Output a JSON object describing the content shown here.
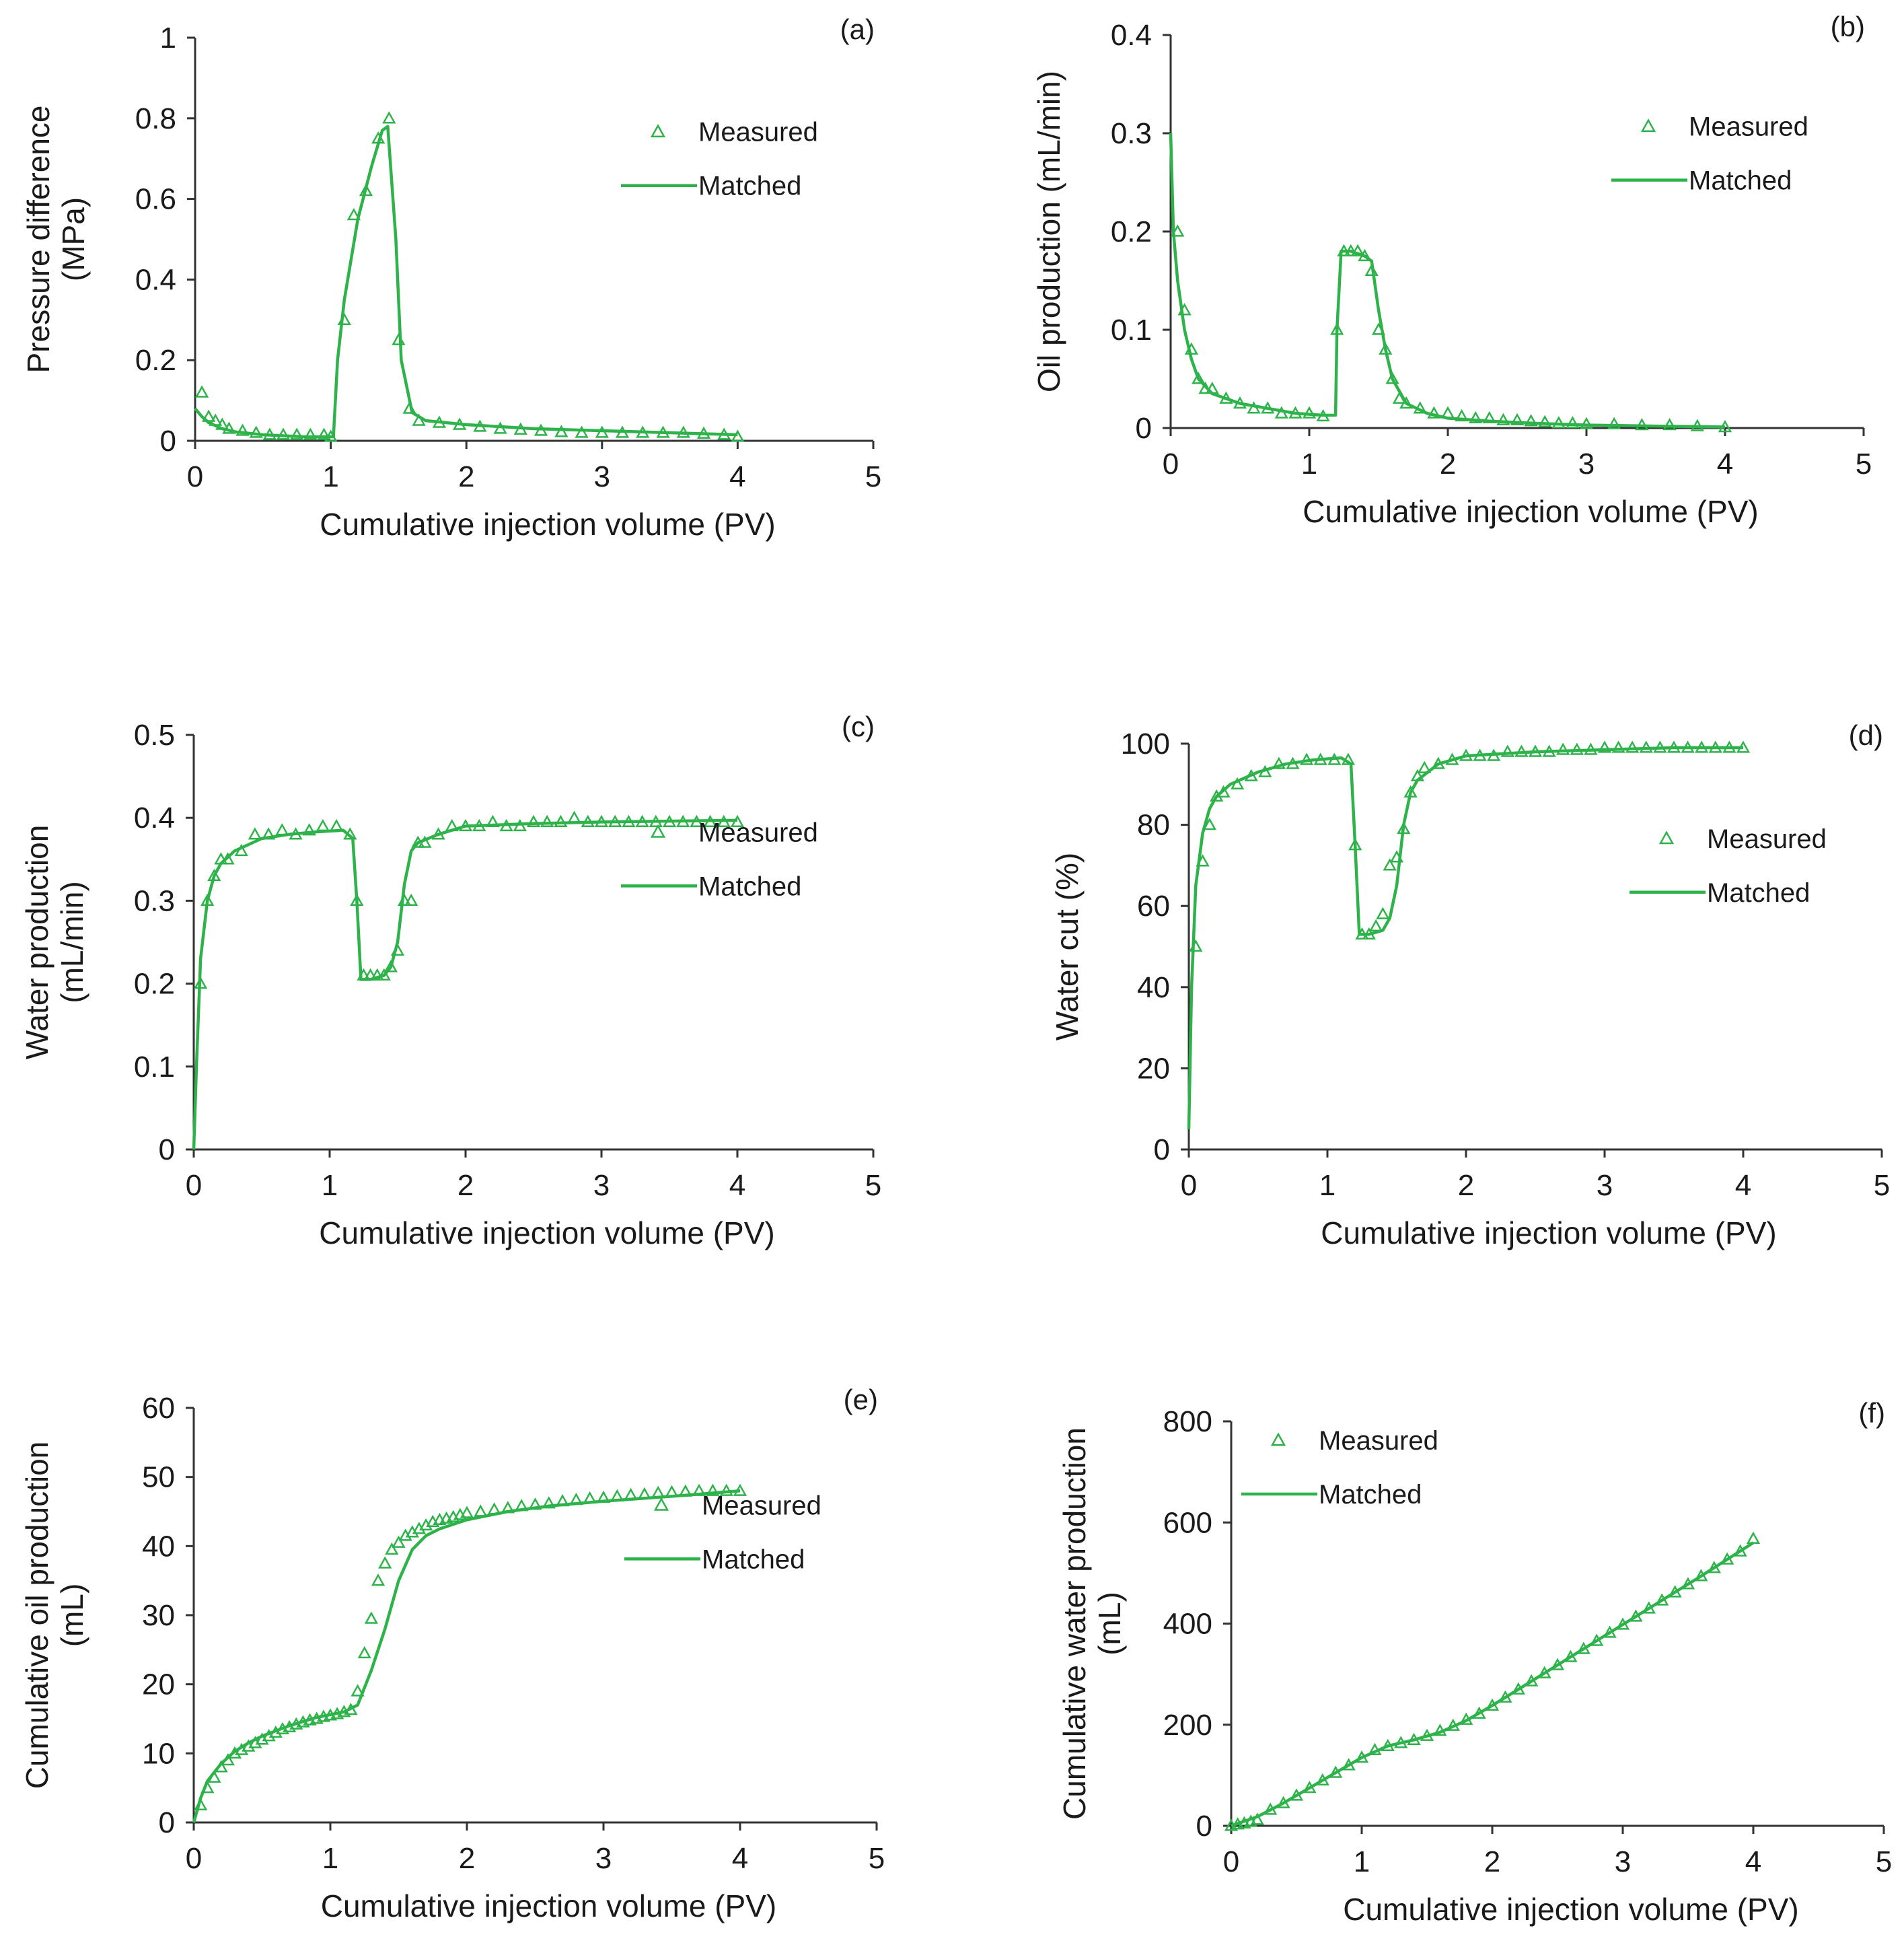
{
  "figure": {
    "series_color": "#2db34a",
    "axis_color": "#333333"
  },
  "chart_data": [
    {
      "id": "a",
      "type": "line",
      "panel_label": "(a)",
      "xlabel": "Cumulative injection volume (PV)",
      "ylabel_lines": [
        "Pressure difference",
        "(MPa)"
      ],
      "xlim": [
        0,
        5
      ],
      "ylim": [
        0,
        1
      ],
      "xticks": [
        0,
        1,
        2,
        3,
        4,
        5
      ],
      "yticks": [
        0,
        0.2,
        0.4,
        0.6,
        0.8,
        1
      ],
      "ytick_labels": [
        "0",
        "0.2",
        "0.4",
        "0.6",
        "0.8",
        "1"
      ],
      "legend": {
        "measured": "Measured",
        "matched": "Matched",
        "position": "right-middle"
      },
      "matched": {
        "x": [
          0,
          0.05,
          0.1,
          0.2,
          0.3,
          0.5,
          0.8,
          1.0,
          1.02,
          1.05,
          1.1,
          1.2,
          1.3,
          1.38,
          1.42,
          1.48,
          1.52,
          1.6,
          1.7,
          2.0,
          2.5,
          3.0,
          3.5,
          4.0
        ],
        "y": [
          0.08,
          0.06,
          0.045,
          0.03,
          0.022,
          0.015,
          0.01,
          0.01,
          0.01,
          0.2,
          0.35,
          0.55,
          0.68,
          0.77,
          0.78,
          0.5,
          0.2,
          0.07,
          0.05,
          0.04,
          0.03,
          0.025,
          0.02,
          0.015
        ]
      },
      "measured": {
        "x": [
          0.05,
          0.1,
          0.15,
          0.2,
          0.25,
          0.35,
          0.45,
          0.55,
          0.65,
          0.75,
          0.85,
          0.95,
          1.0,
          1.1,
          1.17,
          1.26,
          1.35,
          1.43,
          1.5,
          1.58,
          1.65,
          1.8,
          1.95,
          2.1,
          2.25,
          2.4,
          2.55,
          2.7,
          2.85,
          3.0,
          3.15,
          3.3,
          3.45,
          3.6,
          3.75,
          3.9,
          4.0
        ],
        "y": [
          0.12,
          0.06,
          0.05,
          0.04,
          0.03,
          0.025,
          0.02,
          0.015,
          0.015,
          0.015,
          0.015,
          0.015,
          0.01,
          0.3,
          0.56,
          0.62,
          0.75,
          0.8,
          0.25,
          0.08,
          0.05,
          0.045,
          0.04,
          0.035,
          0.03,
          0.028,
          0.025,
          0.022,
          0.02,
          0.02,
          0.02,
          0.02,
          0.02,
          0.02,
          0.018,
          0.015,
          0.01
        ]
      }
    },
    {
      "id": "b",
      "type": "line",
      "panel_label": "(b)",
      "xlabel": "Cumulative injection volume (PV)",
      "ylabel_lines": [
        "Oil production  (mL/min)"
      ],
      "xlim": [
        0,
        5
      ],
      "ylim": [
        0,
        0.4
      ],
      "xticks": [
        0,
        1,
        2,
        3,
        4,
        5
      ],
      "yticks": [
        0,
        0.1,
        0.2,
        0.3,
        0.4
      ],
      "ytick_labels": [
        "0",
        "0.1",
        "0.2",
        "0.3",
        "0.4"
      ],
      "legend": {
        "measured": "Measured",
        "matched": "Matched",
        "position": "right-middle"
      },
      "matched": {
        "x": [
          0,
          0.02,
          0.05,
          0.1,
          0.15,
          0.2,
          0.3,
          0.5,
          0.7,
          0.9,
          1.1,
          1.19,
          1.2,
          1.23,
          1.3,
          1.4,
          1.45,
          1.5,
          1.55,
          1.6,
          1.7,
          1.85,
          2.0,
          2.3,
          2.6,
          3.0,
          3.5,
          4.0
        ],
        "y": [
          0.3,
          0.2,
          0.15,
          0.1,
          0.07,
          0.05,
          0.035,
          0.025,
          0.02,
          0.015,
          0.013,
          0.013,
          0.1,
          0.18,
          0.18,
          0.175,
          0.17,
          0.12,
          0.08,
          0.05,
          0.025,
          0.015,
          0.01,
          0.007,
          0.005,
          0.003,
          0.002,
          0.001
        ]
      },
      "measured": {
        "x": [
          0.05,
          0.1,
          0.15,
          0.2,
          0.25,
          0.3,
          0.4,
          0.5,
          0.6,
          0.7,
          0.8,
          0.9,
          1.0,
          1.1,
          1.2,
          1.25,
          1.3,
          1.35,
          1.4,
          1.45,
          1.5,
          1.55,
          1.6,
          1.65,
          1.7,
          1.8,
          1.9,
          2.0,
          2.1,
          2.2,
          2.3,
          2.4,
          2.5,
          2.6,
          2.7,
          2.8,
          2.9,
          3.0,
          3.2,
          3.4,
          3.6,
          3.8,
          4.0
        ],
        "y": [
          0.2,
          0.12,
          0.08,
          0.05,
          0.04,
          0.04,
          0.03,
          0.025,
          0.02,
          0.02,
          0.015,
          0.015,
          0.015,
          0.012,
          0.1,
          0.18,
          0.18,
          0.18,
          0.175,
          0.16,
          0.1,
          0.08,
          0.05,
          0.03,
          0.025,
          0.02,
          0.015,
          0.015,
          0.012,
          0.01,
          0.01,
          0.008,
          0.008,
          0.007,
          0.006,
          0.005,
          0.005,
          0.004,
          0.004,
          0.003,
          0.003,
          0.002,
          0.001
        ]
      }
    },
    {
      "id": "c",
      "type": "line",
      "panel_label": "(c)",
      "xlabel": "Cumulative injection volume (PV)",
      "ylabel_lines": [
        "Water production",
        "(mL/min)"
      ],
      "xlim": [
        0,
        5
      ],
      "ylim": [
        0,
        0.5
      ],
      "xticks": [
        0,
        1,
        2,
        3,
        4,
        5
      ],
      "yticks": [
        0,
        0.1,
        0.2,
        0.3,
        0.4,
        0.5
      ],
      "ytick_labels": [
        "0",
        "0.1",
        "0.2",
        "0.3",
        "0.4",
        "0.5"
      ],
      "legend": {
        "measured": "Measured",
        "matched": "Matched",
        "position": "right-middle"
      },
      "matched": {
        "x": [
          0,
          0.02,
          0.05,
          0.1,
          0.15,
          0.2,
          0.3,
          0.5,
          0.7,
          0.9,
          1.1,
          1.17,
          1.2,
          1.23,
          1.3,
          1.4,
          1.45,
          1.5,
          1.55,
          1.6,
          1.65,
          1.8,
          2.0,
          2.5,
          3.0,
          3.5,
          4.0
        ],
        "y": [
          0,
          0.1,
          0.23,
          0.3,
          0.33,
          0.345,
          0.36,
          0.375,
          0.38,
          0.383,
          0.385,
          0.375,
          0.3,
          0.205,
          0.205,
          0.21,
          0.22,
          0.25,
          0.32,
          0.36,
          0.37,
          0.38,
          0.39,
          0.393,
          0.395,
          0.396,
          0.397
        ]
      },
      "measured": {
        "x": [
          0.05,
          0.1,
          0.15,
          0.2,
          0.25,
          0.35,
          0.45,
          0.55,
          0.65,
          0.75,
          0.85,
          0.95,
          1.05,
          1.15,
          1.2,
          1.25,
          1.3,
          1.35,
          1.4,
          1.45,
          1.5,
          1.55,
          1.6,
          1.65,
          1.7,
          1.8,
          1.9,
          2.0,
          2.1,
          2.2,
          2.3,
          2.4,
          2.5,
          2.6,
          2.7,
          2.8,
          2.9,
          3.0,
          3.1,
          3.2,
          3.3,
          3.4,
          3.5,
          3.6,
          3.7,
          3.8,
          3.9,
          4.0
        ],
        "y": [
          0.2,
          0.3,
          0.33,
          0.35,
          0.35,
          0.36,
          0.38,
          0.38,
          0.385,
          0.38,
          0.385,
          0.39,
          0.39,
          0.38,
          0.3,
          0.21,
          0.21,
          0.21,
          0.21,
          0.22,
          0.24,
          0.3,
          0.3,
          0.37,
          0.37,
          0.38,
          0.39,
          0.39,
          0.39,
          0.395,
          0.39,
          0.39,
          0.395,
          0.395,
          0.395,
          0.4,
          0.395,
          0.395,
          0.395,
          0.395,
          0.395,
          0.395,
          0.395,
          0.395,
          0.395,
          0.395,
          0.395,
          0.395
        ]
      }
    },
    {
      "id": "d",
      "type": "line",
      "panel_label": "(d)",
      "xlabel": "Cumulative injection volume (PV)",
      "ylabel_lines": [
        "Water cut  (%)"
      ],
      "xlim": [
        0,
        5
      ],
      "ylim": [
        0,
        100
      ],
      "xticks": [
        0,
        1,
        2,
        3,
        4,
        5
      ],
      "yticks": [
        0,
        20,
        40,
        60,
        80,
        100
      ],
      "ytick_labels": [
        "0",
        "20",
        "40",
        "60",
        "80",
        "100"
      ],
      "legend": {
        "measured": "Measured",
        "matched": "Matched",
        "position": "right-middle"
      },
      "matched": {
        "x": [
          0,
          0.02,
          0.05,
          0.1,
          0.15,
          0.2,
          0.3,
          0.5,
          0.7,
          0.9,
          1.1,
          1.17,
          1.2,
          1.23,
          1.3,
          1.4,
          1.45,
          1.5,
          1.55,
          1.6,
          1.65,
          1.8,
          2.0,
          2.5,
          3.0,
          3.5,
          4.0
        ],
        "y": [
          5,
          40,
          65,
          78,
          84,
          87,
          90,
          93,
          95,
          96,
          96.5,
          95,
          75,
          53,
          53,
          54,
          57,
          65,
          80,
          88,
          91,
          95,
          97,
          98,
          98.5,
          99,
          99
        ]
      },
      "measured": {
        "x": [
          0.05,
          0.1,
          0.15,
          0.2,
          0.25,
          0.35,
          0.45,
          0.55,
          0.65,
          0.75,
          0.85,
          0.95,
          1.05,
          1.15,
          1.2,
          1.25,
          1.3,
          1.35,
          1.4,
          1.45,
          1.5,
          1.55,
          1.6,
          1.65,
          1.7,
          1.8,
          1.9,
          2.0,
          2.1,
          2.2,
          2.3,
          2.4,
          2.5,
          2.6,
          2.7,
          2.8,
          2.9,
          3.0,
          3.1,
          3.2,
          3.3,
          3.4,
          3.5,
          3.6,
          3.7,
          3.8,
          3.9,
          4.0
        ],
        "y": [
          50,
          71,
          80,
          87,
          88,
          90,
          92,
          93,
          95,
          95,
          96,
          96,
          96,
          96,
          75,
          53,
          53,
          55,
          58,
          70,
          72,
          79,
          88,
          92,
          94,
          95,
          96,
          97,
          97,
          97,
          98,
          98,
          98,
          98,
          98.5,
          98.5,
          98.5,
          99,
          99,
          99,
          99,
          99,
          99,
          99,
          99,
          99,
          99,
          99
        ]
      }
    },
    {
      "id": "e",
      "type": "line",
      "panel_label": "(e)",
      "xlabel": "Cumulative injection volume (PV)",
      "ylabel_lines": [
        "Cumulative oil production",
        "(mL)"
      ],
      "xlim": [
        0,
        5
      ],
      "ylim": [
        0,
        60
      ],
      "xticks": [
        0,
        1,
        2,
        3,
        4,
        5
      ],
      "yticks": [
        0,
        10,
        20,
        30,
        40,
        50,
        60
      ],
      "ytick_labels": [
        "0",
        "10",
        "20",
        "30",
        "40",
        "50",
        "60"
      ],
      "legend": {
        "measured": "Measured",
        "matched": "Matched",
        "position": "right-middle"
      },
      "matched": {
        "x": [
          0,
          0.05,
          0.1,
          0.2,
          0.3,
          0.4,
          0.5,
          0.7,
          0.9,
          1.1,
          1.2,
          1.3,
          1.4,
          1.5,
          1.6,
          1.7,
          1.8,
          2.0,
          2.3,
          2.6,
          3.0,
          3.5,
          4.0
        ],
        "y": [
          0,
          3.5,
          6,
          8.5,
          10.3,
          11.5,
          12.5,
          14,
          15.2,
          16,
          17,
          22,
          28,
          35,
          39.5,
          41.5,
          42.5,
          43.8,
          45,
          45.8,
          46.5,
          47.2,
          48
        ]
      },
      "measured": {
        "x": [
          0.05,
          0.1,
          0.15,
          0.2,
          0.25,
          0.3,
          0.35,
          0.4,
          0.45,
          0.5,
          0.55,
          0.6,
          0.65,
          0.7,
          0.75,
          0.8,
          0.85,
          0.9,
          0.95,
          1.0,
          1.05,
          1.1,
          1.15,
          1.2,
          1.25,
          1.3,
          1.35,
          1.4,
          1.45,
          1.5,
          1.55,
          1.6,
          1.65,
          1.7,
          1.75,
          1.8,
          1.85,
          1.9,
          1.95,
          2.0,
          2.1,
          2.2,
          2.3,
          2.4,
          2.5,
          2.6,
          2.7,
          2.8,
          2.9,
          3.0,
          3.1,
          3.2,
          3.3,
          3.4,
          3.5,
          3.6,
          3.7,
          3.8,
          3.9,
          4.0
        ],
        "y": [
          2.5,
          5,
          6.5,
          8,
          9,
          10,
          10.5,
          11,
          11.5,
          12,
          12.5,
          13,
          13.5,
          13.8,
          14.2,
          14.5,
          14.8,
          15,
          15.3,
          15.5,
          15.7,
          16,
          16.3,
          19,
          24.5,
          29.5,
          35,
          37.5,
          39.5,
          40.5,
          41.5,
          42,
          42.5,
          43,
          43.5,
          43.8,
          44,
          44.2,
          44.5,
          44.8,
          45,
          45.3,
          45.5,
          45.8,
          46,
          46.2,
          46.5,
          46.7,
          46.9,
          47,
          47.2,
          47.4,
          47.5,
          47.7,
          47.8,
          47.9,
          48,
          48,
          48,
          48
        ]
      }
    },
    {
      "id": "f",
      "type": "line",
      "panel_label": "(f)",
      "xlabel": "Cumulative injection volume (PV)",
      "ylabel_lines": [
        "Cumulative water production",
        "(mL)"
      ],
      "xlim": [
        0,
        5
      ],
      "ylim": [
        0,
        800
      ],
      "xticks": [
        0,
        1,
        2,
        3,
        4,
        5
      ],
      "yticks": [
        0,
        200,
        400,
        600,
        800
      ],
      "ytick_labels": [
        "0",
        "200",
        "400",
        "600",
        "800"
      ],
      "legend": {
        "measured": "Measured",
        "matched": "Matched",
        "position": "top-left"
      },
      "matched": {
        "x": [
          0,
          0.2,
          0.4,
          0.6,
          0.8,
          1.0,
          1.2,
          1.4,
          1.6,
          1.8,
          2.0,
          2.2,
          2.4,
          2.6,
          2.8,
          3.0,
          3.2,
          3.4,
          3.6,
          3.8,
          4.0
        ],
        "y": [
          0,
          18,
          45,
          75,
          105,
          135,
          158,
          170,
          185,
          208,
          238,
          270,
          302,
          334,
          366,
          398,
          430,
          462,
          494,
          527,
          560
        ]
      },
      "measured": {
        "x": [
          0,
          0.05,
          0.1,
          0.15,
          0.2,
          0.3,
          0.4,
          0.5,
          0.6,
          0.7,
          0.8,
          0.9,
          1.0,
          1.1,
          1.2,
          1.3,
          1.4,
          1.5,
          1.6,
          1.7,
          1.8,
          1.9,
          2.0,
          2.1,
          2.2,
          2.3,
          2.4,
          2.5,
          2.6,
          2.7,
          2.8,
          2.9,
          3.0,
          3.1,
          3.2,
          3.3,
          3.4,
          3.5,
          3.6,
          3.7,
          3.8,
          3.9,
          4.0
        ],
        "y": [
          0,
          3,
          5,
          8,
          12,
          32,
          45,
          60,
          75,
          90,
          105,
          120,
          135,
          150,
          158,
          164,
          170,
          178,
          188,
          198,
          210,
          222,
          238,
          254,
          270,
          286,
          302,
          318,
          334,
          350,
          366,
          382,
          398,
          414,
          430,
          446,
          462,
          478,
          494,
          510,
          527,
          543,
          568
        ]
      }
    }
  ]
}
